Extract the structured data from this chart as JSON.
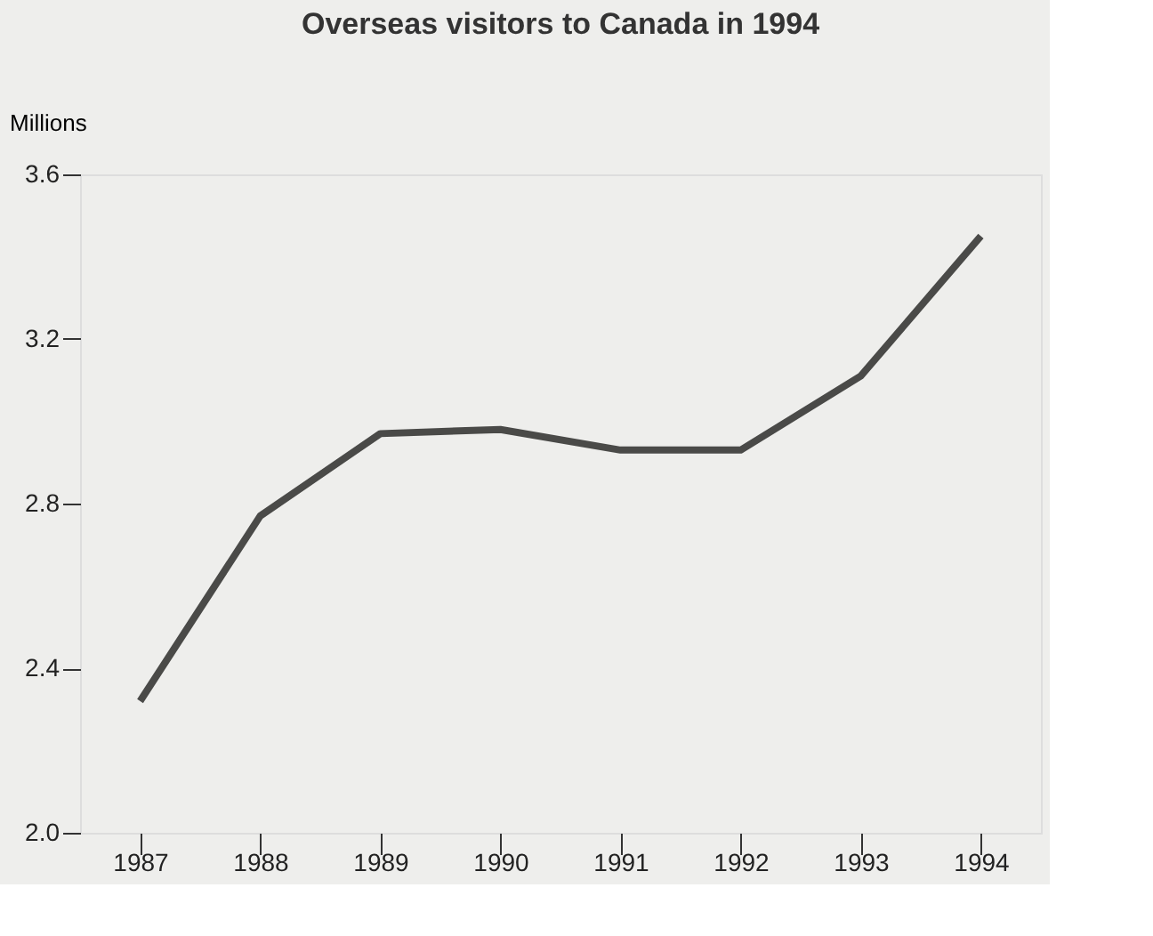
{
  "chart_data": {
    "type": "line",
    "title": "Overseas visitors to Canada in 1994",
    "ylabel": "Millions",
    "categories": [
      "1987",
      "1988",
      "1989",
      "1990",
      "1991",
      "1992",
      "1993",
      "1994"
    ],
    "series": [
      {
        "color": "#4a4a48",
        "values": [
          2.32,
          2.77,
          2.97,
          2.98,
          2.93,
          2.93,
          3.11,
          3.45
        ]
      }
    ],
    "ylim": [
      2.0,
      3.6
    ],
    "yticks": [
      {
        "value": 2,
        "label": "2.0"
      },
      2.4,
      2.8,
      3.2,
      3.6
    ],
    "grid": false,
    "marker": "none",
    "line_style": "solid"
  }
}
